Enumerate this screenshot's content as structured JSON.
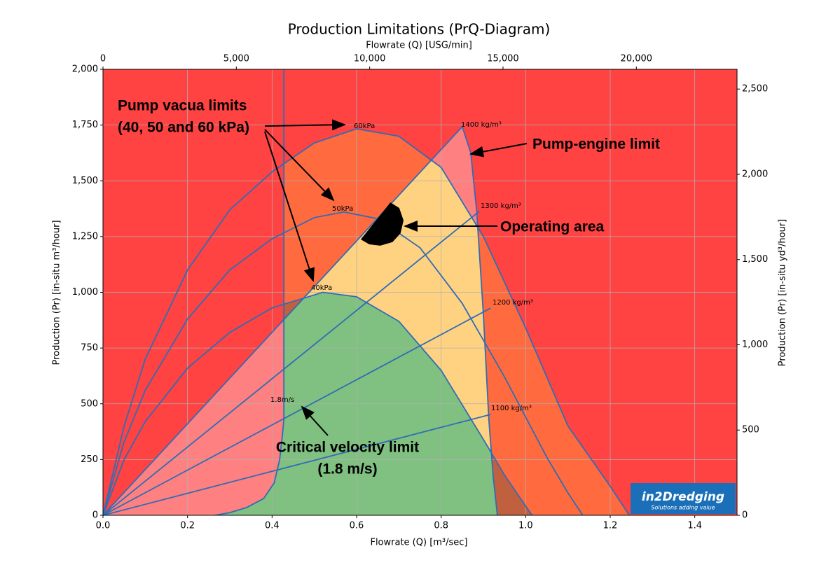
{
  "chart_data": {
    "type": "line",
    "title": "Production Limitations (PrQ-Diagram)",
    "xlabel": "Flowrate (Q) [m³/sec]",
    "ylabel": "Production (Pr) [in-situ m³/hour]",
    "x2label": "Flowrate (Q) [USG/min]",
    "y2label": "Production (Pr) [in-situ yd³/hour]",
    "xlim": [
      0,
      1.5
    ],
    "ylim": [
      0,
      2000
    ],
    "x2lim": [
      0,
      23775
    ],
    "y2lim": [
      0,
      2615.9
    ],
    "xticks": [
      {
        "value": 0,
        "label": "0.0"
      },
      0.2,
      0.4,
      0.6,
      0.8,
      {
        "value": 1,
        "label": "1.0"
      },
      1.2,
      1.4
    ],
    "yticks": [
      0,
      250,
      500,
      750,
      {
        "value": 1000,
        "label": "1,000"
      },
      {
        "value": 1250,
        "label": "1,250"
      },
      {
        "value": 1500,
        "label": "1,500"
      },
      {
        "value": 1750,
        "label": "1,750"
      },
      {
        "value": 2000,
        "label": "2,000"
      }
    ],
    "x2ticks": [
      0,
      {
        "value": 5000,
        "label": "5,000"
      },
      {
        "value": 10000,
        "label": "10,000"
      },
      {
        "value": 15000,
        "label": "15,000"
      },
      {
        "value": 20000,
        "label": "20,000"
      }
    ],
    "y2ticks": [
      0,
      500,
      {
        "value": 1000,
        "label": "1,000"
      },
      {
        "value": 1500,
        "label": "1,500"
      },
      {
        "value": 2000,
        "label": "2,000"
      },
      {
        "value": 2500,
        "label": "2,500"
      }
    ],
    "grid": true,
    "series": [
      {
        "name": "60kPa",
        "color": "#2f6db5",
        "x": [
          0,
          0.05,
          0.1,
          0.2,
          0.3,
          0.4,
          0.5,
          0.6,
          0.7,
          0.8,
          0.9,
          1.0,
          1.1,
          1.2,
          1.245
        ],
        "values": [
          0,
          400,
          700,
          1100,
          1370,
          1540,
          1670,
          1733,
          1700,
          1560,
          1250,
          840,
          400,
          130,
          0
        ]
      },
      {
        "name": "50kPa",
        "color": "#2f6db5",
        "x": [
          0,
          0.05,
          0.1,
          0.2,
          0.3,
          0.4,
          0.5,
          0.57,
          0.65,
          0.75,
          0.85,
          0.95,
          1.05,
          1.1,
          1.135
        ],
        "values": [
          0,
          330,
          560,
          880,
          1100,
          1240,
          1335,
          1360,
          1330,
          1200,
          950,
          620,
          260,
          100,
          0
        ]
      },
      {
        "name": "40kPa",
        "color": "#2f6db5",
        "x": [
          0,
          0.05,
          0.1,
          0.2,
          0.3,
          0.4,
          0.52,
          0.6,
          0.7,
          0.8,
          0.9,
          0.95,
          1.015
        ],
        "values": [
          0,
          250,
          420,
          660,
          820,
          930,
          1000,
          980,
          870,
          650,
          340,
          180,
          0
        ]
      },
      {
        "name": "1100 kg/m³",
        "color": "#2f6db5",
        "x": [
          0,
          0.917
        ],
        "values": [
          0,
          452
        ]
      },
      {
        "name": "1200 kg/m³",
        "color": "#2f6db5",
        "x": [
          0,
          0.917
        ],
        "values": [
          0,
          929
        ]
      },
      {
        "name": "1300 kg/m³",
        "color": "#2f6db5",
        "x": [
          0,
          0.89
        ],
        "values": [
          0,
          1363
        ]
      },
      {
        "name": "1400 kg/m³",
        "color": "#2f6db5",
        "x": [
          0,
          0.85
        ],
        "values": [
          0,
          1743
        ]
      },
      {
        "name": "Pump-engine limit",
        "color": "#2f6db5",
        "x": [
          0.85,
          0.87,
          0.884,
          0.9,
          0.913,
          0.923,
          0.933
        ],
        "values": [
          1743,
          1626,
          1369,
          898,
          427,
          176,
          0
        ]
      },
      {
        "name": "1.8m/s",
        "color": "#2f6db5",
        "x": [
          0.428,
          0.428,
          0.425,
          0.418,
          0.405,
          0.38,
          0.34,
          0.3,
          0.265
        ],
        "values": [
          2000,
          430,
          370,
          250,
          145,
          75,
          35,
          12,
          0
        ]
      },
      {
        "name": "Operating area",
        "color": "#000000",
        "x": [
          0.68,
          0.701,
          0.711,
          0.704,
          0.685,
          0.656,
          0.63,
          0.61
        ],
        "values": [
          1403,
          1378,
          1322,
          1265,
          1225,
          1209,
          1215,
          1237
        ]
      }
    ],
    "annotations": [
      "Pump vacua limits",
      "(40, 50 and 60 kPa)",
      "Critical velocity limit",
      "(1.8 m/s)"
    ],
    "logo": {
      "name": "in2Dredging",
      "tagline": "Solutions adding value"
    }
  }
}
